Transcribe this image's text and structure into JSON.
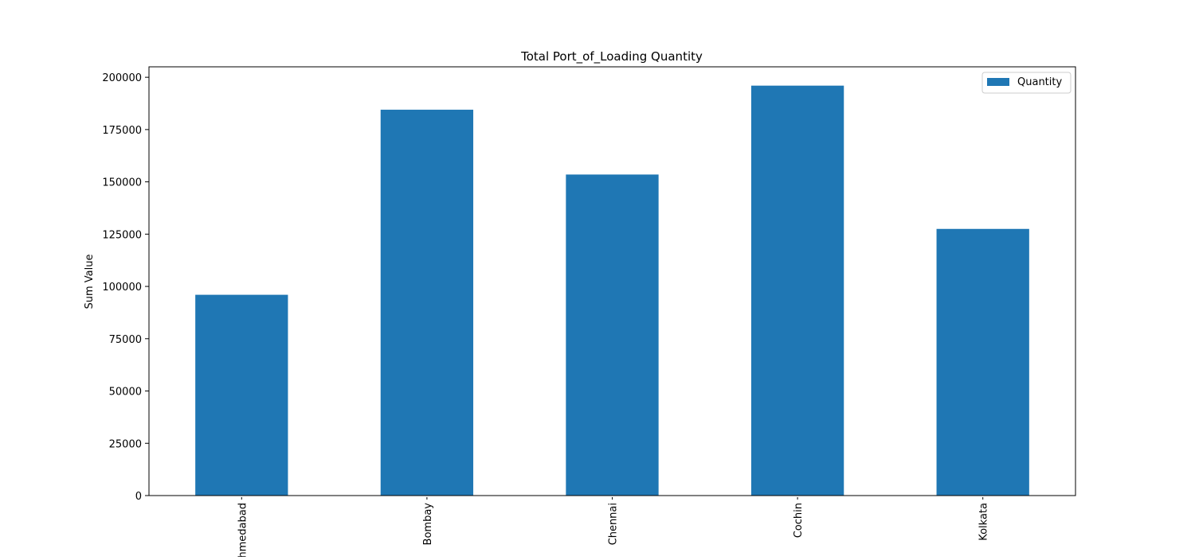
{
  "chart_data": {
    "type": "bar",
    "title": "Total Port_of_Loading Quantity",
    "xlabel": "",
    "ylabel": "Sum Value",
    "categories": [
      "Ahmedabad",
      "Bombay",
      "Chennai",
      "Cochin",
      "Kolkata"
    ],
    "series": [
      {
        "name": "Quantity",
        "color": "#1f77b4",
        "values": [
          96000,
          184500,
          153500,
          196000,
          127500
        ]
      }
    ],
    "ylim": [
      0,
      205000
    ],
    "yticks": [
      0,
      25000,
      50000,
      75000,
      100000,
      125000,
      150000,
      175000,
      200000
    ],
    "grid": false,
    "legend_position": "top-right"
  }
}
